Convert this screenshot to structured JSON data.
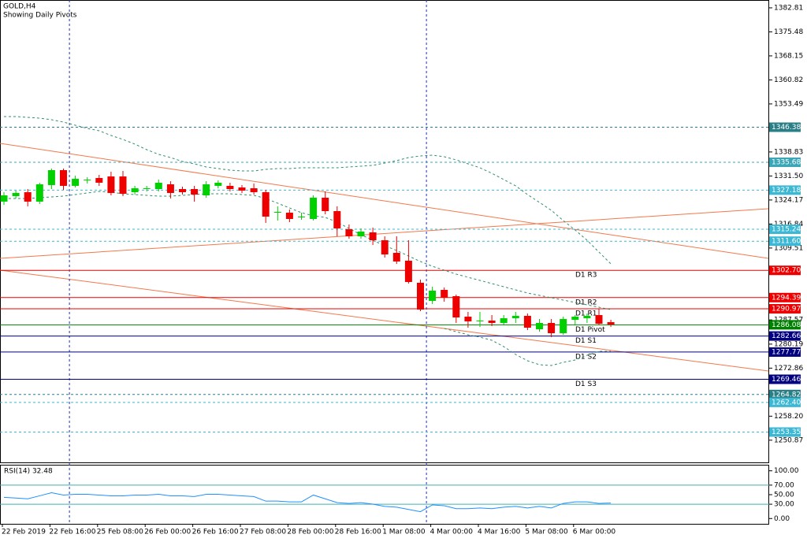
{
  "chart_data": [
    {
      "type": "candlestick",
      "title": "GOLD,H4",
      "subtitle": "Showing Daily Pivots",
      "categories": [
        "22 Feb 2019",
        null,
        null,
        null,
        "22 Feb 16:00",
        null,
        null,
        null,
        "25 Feb 08:00",
        null,
        null,
        null,
        "26 Feb 00:00",
        null,
        null,
        null,
        "26 Feb 16:00",
        null,
        null,
        null,
        "27 Feb 08:00",
        null,
        null,
        null,
        "28 Feb 00:00",
        null,
        null,
        null,
        "28 Feb 16:00",
        null,
        null,
        null,
        "1 Mar 08:00",
        null,
        null,
        null,
        "4 Mar 00:00",
        null,
        null,
        null,
        "4 Mar 16:00",
        null,
        null,
        null,
        "5 Mar 08:00",
        null,
        null,
        null,
        "6 Mar 00:00",
        null,
        null,
        null
      ],
      "open": [
        1323.67,
        1325.35,
        1326.55,
        1323.67,
        1328.72,
        1333.28,
        1328.48,
        1330.16,
        1330.88,
        1331.36,
        1331.36,
        1326.55,
        1327.51,
        1327.51,
        1328.96,
        1327.51,
        1327.51,
        1325.59,
        1328.48,
        1328.48,
        1327.99,
        1327.75,
        1326.55,
        1320.3,
        1320.3,
        1318.9,
        1318.38,
        1324.87,
        1320.78,
        1315.25,
        1313.09,
        1314.29,
        1311.89,
        1308.04,
        1305.64,
        1298.91,
        1293.38,
        1296.74,
        1294.82,
        1288.57,
        1287.13,
        1287.37,
        1286.65,
        1288.09,
        1288.81,
        1284.72,
        1286.65,
        1283.52,
        1287.61,
        1288.09,
        1289.05,
        1286.89
      ],
      "high": [
        1326.55,
        1327.03,
        1327.51,
        1329.44,
        1333.76,
        1333.76,
        1331.6,
        1331.12,
        1331.84,
        1332.8,
        1333.04,
        1328.48,
        1328.48,
        1330.4,
        1329.92,
        1328.24,
        1328.48,
        1329.92,
        1330.16,
        1329.44,
        1328.72,
        1329.2,
        1327.27,
        1322.23,
        1321.26,
        1320.3,
        1325.59,
        1326.79,
        1322.23,
        1316.7,
        1315.49,
        1315.73,
        1313.09,
        1313.09,
        1311.89,
        1299.87,
        1297.7,
        1297.46,
        1295.3,
        1290.01,
        1290.01,
        1289.05,
        1289.05,
        1290.01,
        1289.53,
        1287.85,
        1287.85,
        1288.57,
        1289.05,
        1289.53,
        1290.97,
        1287.61
      ],
      "low": [
        1322.71,
        1324.63,
        1322.23,
        1322.95,
        1327.51,
        1327.27,
        1327.99,
        1329.2,
        1328.48,
        1325.59,
        1325.35,
        1325.83,
        1326.79,
        1326.79,
        1324.63,
        1325.83,
        1323.67,
        1324.87,
        1327.75,
        1326.79,
        1326.31,
        1325.83,
        1317.18,
        1317.9,
        1317.42,
        1318.14,
        1317.9,
        1319.82,
        1313.09,
        1312.37,
        1312.37,
        1310.45,
        1306.6,
        1304.68,
        1298.67,
        1290.25,
        1292.42,
        1293.14,
        1286.65,
        1285.2,
        1285.44,
        1285.68,
        1286.17,
        1286.65,
        1284.48,
        1284.0,
        1282.32,
        1283.04,
        1286.17,
        1286.65,
        1285.92,
        1285.44
      ],
      "close": [
        1325.59,
        1326.31,
        1323.67,
        1328.96,
        1333.28,
        1328.48,
        1330.64,
        1330.4,
        1329.44,
        1326.31,
        1326.07,
        1327.75,
        1327.75,
        1329.44,
        1326.31,
        1326.55,
        1325.83,
        1328.96,
        1329.44,
        1327.51,
        1327.03,
        1326.55,
        1319.1,
        1320.54,
        1318.38,
        1319.1,
        1324.87,
        1320.78,
        1315.49,
        1313.09,
        1314.53,
        1311.89,
        1307.56,
        1305.4,
        1299.15,
        1290.73,
        1296.5,
        1294.34,
        1288.33,
        1287.13,
        1287.37,
        1286.65,
        1288.09,
        1288.81,
        1285.2,
        1286.65,
        1283.52,
        1287.85,
        1288.57,
        1288.81,
        1286.41,
        1286.17
      ],
      "up_color": "#00d000",
      "down_color": "#ee0000",
      "bands": [
        {
          "color": "#2f8f6f",
          "values": [
            1349.63,
            1349.63,
            1349.39,
            1349.15,
            1348.67,
            1347.95,
            1346.99,
            1346.02,
            1345.3,
            1343.86,
            1342.66,
            1341.22,
            1339.53,
            1338.09,
            1337.13,
            1335.93,
            1335.21,
            1334.25,
            1333.76,
            1333.28,
            1333.04,
            1333.04,
            1333.52,
            1333.76,
            1333.76,
            1334.0,
            1334.0,
            1334.0,
            1334.0,
            1334.25,
            1334.49,
            1334.73,
            1335.45,
            1336.17,
            1337.13,
            1337.61,
            1337.85,
            1337.37,
            1336.41,
            1335.21,
            1334.0,
            1332.32,
            1330.4,
            1328.48,
            1325.83,
            1323.43,
            1321.02,
            1317.9,
            1315.01,
            1311.89,
            1308.28,
            1304.68
          ]
        },
        {
          "color": "#2f8f6f",
          "values": [
            1324.63,
            1324.63,
            1324.63,
            1324.87,
            1325.11,
            1325.35,
            1325.83,
            1326.31,
            1326.79,
            1326.55,
            1326.07,
            1325.83,
            1325.59,
            1325.35,
            1325.35,
            1325.59,
            1325.83,
            1326.07,
            1326.07,
            1326.07,
            1325.83,
            1325.59,
            1324.63,
            1323.19,
            1321.74,
            1320.3,
            1319.34,
            1318.86,
            1317.42,
            1315.49,
            1313.57,
            1311.89,
            1310.21,
            1308.76,
            1307.08,
            1305.4,
            1303.95,
            1302.75,
            1301.55,
            1300.59,
            1299.63,
            1298.67,
            1297.7,
            1296.74,
            1295.78,
            1295.06,
            1294.34,
            1293.62,
            1292.9,
            1292.18,
            1291.45,
            1290.73
          ]
        },
        {
          "color": "#2f8f6f",
          "values": [
            null,
            null,
            null,
            null,
            null,
            null,
            null,
            null,
            null,
            null,
            null,
            null,
            null,
            null,
            null,
            null,
            null,
            null,
            null,
            null,
            null,
            null,
            null,
            null,
            null,
            null,
            null,
            null,
            null,
            null,
            null,
            null,
            null,
            null,
            null,
            null,
            null,
            1284.96,
            1284.0,
            1283.04,
            1282.32,
            1281.36,
            1279.43,
            1277.03,
            1275.11,
            1273.9,
            1273.66,
            1274.63,
            1275.35,
            1276.79,
            1277.99,
            1277.99
          ]
        }
      ],
      "ylim": [
        1244.1,
        1385.2
      ],
      "yticks": [
        1382.81,
        1375.48,
        1368.15,
        1360.82,
        1353.49,
        1338.83,
        {
          "value": 1331.5,
          "label": "1331.50"
        },
        1324.17,
        1316.84,
        1309.51,
        1287.57,
        1280.19,
        1272.86,
        {
          "value": 1258.2,
          "label": "1258.20"
        },
        1250.87
      ],
      "levels": [
        {
          "value": 1346.38,
          "color": "#2a7f86"
        },
        {
          "value": 1335.68,
          "color": "#3aa6b8"
        },
        {
          "value": 1327.18,
          "color": "#3cb8d4"
        },
        {
          "value": 1315.24,
          "color": "#3cb8d4"
        },
        {
          "value": 1311.6,
          "label": "1311.60",
          "color": "#3cb8d4"
        },
        {
          "value": 1264.82,
          "color": "#2a7f86"
        },
        {
          "value": 1262.4,
          "label": "1262.40",
          "color": "#3cb8d4"
        },
        {
          "value": 1253.35,
          "color": "#3cb8d4"
        }
      ],
      "pivots": [
        {
          "name": "D1 R3",
          "value": 1302.7,
          "label": "1302.70",
          "color": "#ee0000"
        },
        {
          "name": "D1 R2",
          "value": 1294.39,
          "color": "#ee0000"
        },
        {
          "name": "D1 R1",
          "value": 1290.97,
          "color": "#ee0000"
        },
        {
          "name": "D1 Pivot",
          "value": 1286.08,
          "color": "#008000"
        },
        {
          "name": "D1 S1",
          "value": 1282.66,
          "color": "#000080"
        },
        {
          "name": "D1 S2",
          "value": 1277.77,
          "color": "#000080"
        },
        {
          "name": "D1 S3",
          "value": 1269.46,
          "color": "#000080"
        }
      ],
      "period_separators": [
        6,
        36
      ]
    },
    {
      "type": "line",
      "title": "RSI(14) 32.48",
      "color": "#1e90ff",
      "values": [
        44.4,
        42.9,
        41.3,
        47.6,
        54.0,
        49.2,
        50.8,
        50.8,
        49.2,
        47.6,
        47.6,
        49.2,
        49.2,
        50.8,
        47.6,
        47.6,
        46.0,
        50.8,
        50.8,
        49.2,
        47.6,
        46.0,
        36.5,
        36.5,
        34.9,
        34.9,
        49.2,
        41.3,
        33.3,
        31.7,
        33.3,
        30.2,
        25.4,
        23.8,
        19.0,
        14.3,
        28.6,
        26.9,
        20.6,
        20.6,
        22.2,
        20.6,
        23.8,
        25.4,
        22.2,
        25.4,
        22.2,
        31.7,
        34.9,
        34.9,
        31.7,
        32.48
      ],
      "ylim": [
        -11.1,
        112.7
      ],
      "yticks": [
        {
          "value": 100,
          "label": "100.00"
        },
        {
          "value": 70,
          "label": "70.00"
        },
        {
          "value": 50,
          "label": "50.00"
        },
        {
          "value": 30,
          "label": "30.00"
        },
        {
          "value": 0,
          "label": "0.00"
        }
      ],
      "levels": [
        70,
        30
      ],
      "level_color": "#40b0b0"
    }
  ]
}
